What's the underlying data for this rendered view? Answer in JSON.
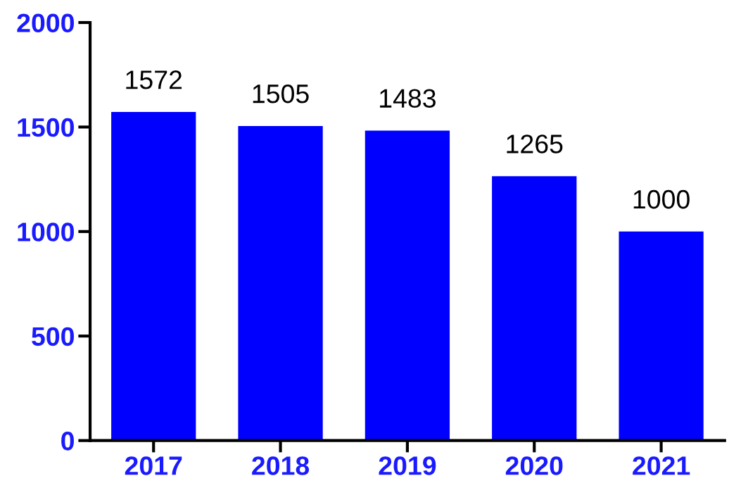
{
  "chart_data": {
    "type": "bar",
    "categories": [
      "2017",
      "2018",
      "2019",
      "2020",
      "2021"
    ],
    "values": [
      1572,
      1505,
      1483,
      1265,
      1000
    ],
    "color": "#0000ff",
    "ylim": [
      0,
      2000
    ],
    "yticks": [
      0,
      500,
      1000,
      1500,
      2000
    ],
    "data_labels": true,
    "grid": false
  }
}
